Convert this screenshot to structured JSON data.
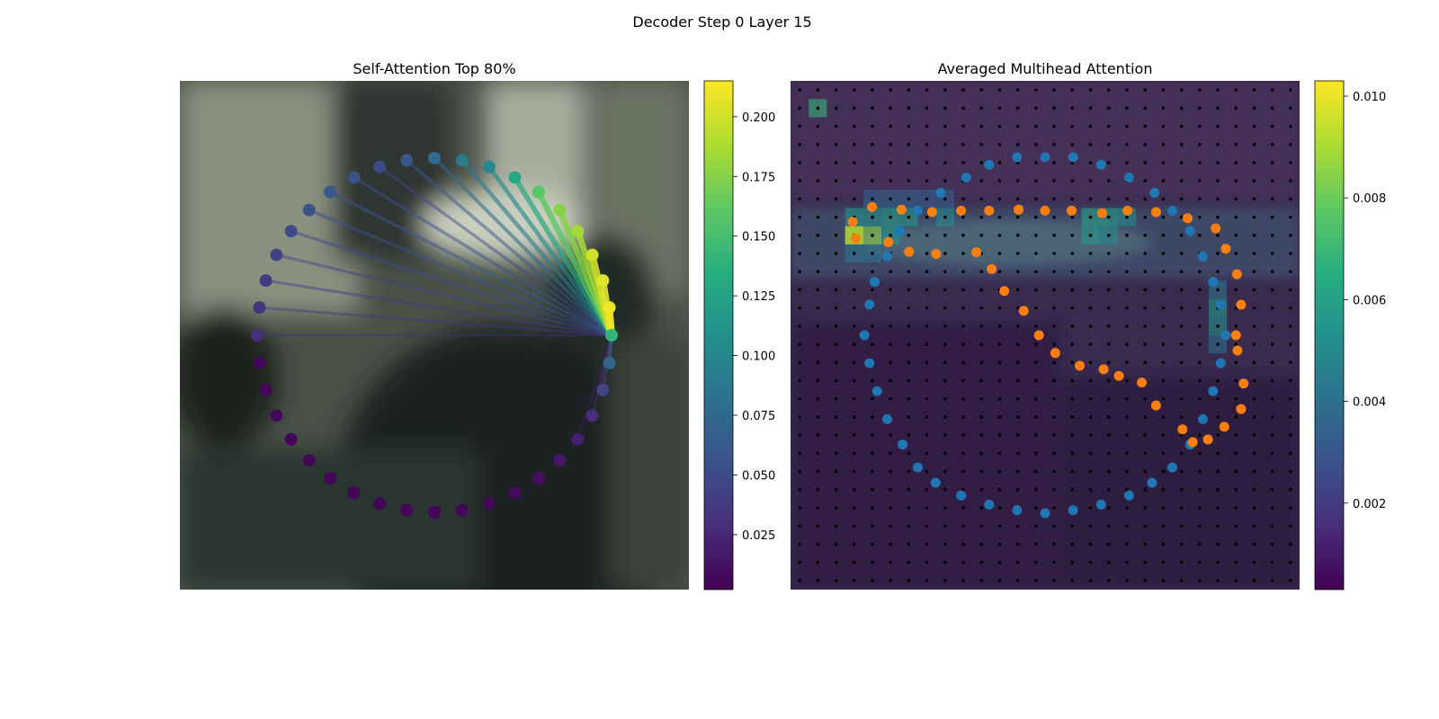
{
  "figure_title": "Decoder Step 0 Layer 15",
  "colormap": [
    "#440154",
    "#472d7b",
    "#3b528b",
    "#2c728e",
    "#21918c",
    "#28ae80",
    "#5ec962",
    "#addc30",
    "#fde725"
  ],
  "series_colors": {
    "contour": "#1f77b4",
    "predicted": "#ff7f0e",
    "grid": "#000000"
  },
  "chart_data": [
    {
      "type": "scatter",
      "title": "Self-Attention Top 80%",
      "description_of_background": "blurred photograph",
      "num_contour_points": 40,
      "query_point_index": 0,
      "attention_weights": [
        0.14,
        0.07,
        0.045,
        0.03,
        0.02,
        0.015,
        0.01,
        0.008,
        0.006,
        0.005,
        0.004,
        0.004,
        0.004,
        0.004,
        0.005,
        0.005,
        0.005,
        0.006,
        0.006,
        0.006,
        0.03,
        0.035,
        0.04,
        0.045,
        0.05,
        0.055,
        0.06,
        0.055,
        0.05,
        0.06,
        0.075,
        0.09,
        0.1,
        0.13,
        0.16,
        0.175,
        0.185,
        0.2,
        0.205,
        0.21
      ],
      "colorbar": {
        "min": 0.002,
        "max": 0.215,
        "ticks": [
          "0.025",
          "0.050",
          "0.075",
          "0.100",
          "0.125",
          "0.150",
          "0.175",
          "0.200"
        ]
      }
    },
    {
      "type": "scatter",
      "title": "Averaged Multihead Attention",
      "grid_size": 28,
      "colorbar": {
        "min": 0.0003,
        "max": 0.0103,
        "ticks": [
          "0.002",
          "0.004",
          "0.006",
          "0.008",
          "0.010"
        ]
      },
      "heat_cells": [
        {
          "r": 1,
          "c": 1,
          "v": 0.0068
        },
        {
          "r": 8,
          "c": 3,
          "v": 0.0092
        },
        {
          "r": 8,
          "c": 4,
          "v": 0.0085
        },
        {
          "r": 8,
          "c": 3,
          "v": 0.0092
        },
        {
          "r": 7,
          "c": 3,
          "v": 0.0055
        },
        {
          "r": 7,
          "c": 4,
          "v": 0.0052
        },
        {
          "r": 7,
          "c": 5,
          "v": 0.0058
        },
        {
          "r": 7,
          "c": 6,
          "v": 0.0056
        },
        {
          "r": 7,
          "c": 8,
          "v": 0.005
        },
        {
          "r": 7,
          "c": 16,
          "v": 0.006
        },
        {
          "r": 7,
          "c": 17,
          "v": 0.0058
        },
        {
          "r": 7,
          "c": 18,
          "v": 0.0052
        },
        {
          "r": 8,
          "c": 5,
          "v": 0.0055
        },
        {
          "r": 8,
          "c": 16,
          "v": 0.0056
        },
        {
          "r": 8,
          "c": 17,
          "v": 0.005
        },
        {
          "r": 9,
          "c": 3,
          "v": 0.0042
        },
        {
          "r": 9,
          "c": 4,
          "v": 0.004
        },
        {
          "r": 12,
          "c": 23,
          "v": 0.0058
        },
        {
          "r": 13,
          "c": 23,
          "v": 0.0055
        },
        {
          "r": 11,
          "c": 23,
          "v": 0.0042
        },
        {
          "r": 14,
          "c": 23,
          "v": 0.004
        },
        {
          "r": 6,
          "c": 4,
          "v": 0.0035
        },
        {
          "r": 6,
          "c": 5,
          "v": 0.0036
        },
        {
          "r": 6,
          "c": 6,
          "v": 0.0034
        },
        {
          "r": 6,
          "c": 7,
          "v": 0.0033
        },
        {
          "r": 6,
          "c": 8,
          "v": 0.0033
        }
      ],
      "contour_points_xy": [
        [
          0.5,
          0.15
        ],
        [
          0.555,
          0.15
        ],
        [
          0.61,
          0.165
        ],
        [
          0.665,
          0.19
        ],
        [
          0.715,
          0.22
        ],
        [
          0.75,
          0.255
        ],
        [
          0.785,
          0.295
        ],
        [
          0.81,
          0.345
        ],
        [
          0.83,
          0.395
        ],
        [
          0.845,
          0.44
        ],
        [
          0.855,
          0.5
        ],
        [
          0.845,
          0.555
        ],
        [
          0.83,
          0.61
        ],
        [
          0.81,
          0.665
        ],
        [
          0.785,
          0.715
        ],
        [
          0.75,
          0.76
        ],
        [
          0.71,
          0.79
        ],
        [
          0.665,
          0.815
        ],
        [
          0.61,
          0.833
        ],
        [
          0.555,
          0.844
        ],
        [
          0.5,
          0.85
        ],
        [
          0.445,
          0.844
        ],
        [
          0.39,
          0.833
        ],
        [
          0.335,
          0.815
        ],
        [
          0.285,
          0.79
        ],
        [
          0.25,
          0.76
        ],
        [
          0.22,
          0.715
        ],
        [
          0.19,
          0.665
        ],
        [
          0.17,
          0.61
        ],
        [
          0.155,
          0.555
        ],
        [
          0.145,
          0.5
        ],
        [
          0.155,
          0.44
        ],
        [
          0.165,
          0.395
        ],
        [
          0.19,
          0.345
        ],
        [
          0.215,
          0.295
        ],
        [
          0.25,
          0.255
        ],
        [
          0.295,
          0.22
        ],
        [
          0.345,
          0.19
        ],
        [
          0.39,
          0.165
        ],
        [
          0.445,
          0.15
        ]
      ],
      "predicted_points_xy": [
        [
          0.122,
          0.277
        ],
        [
          0.16,
          0.248
        ],
        [
          0.218,
          0.253
        ],
        [
          0.278,
          0.258
        ],
        [
          0.335,
          0.255
        ],
        [
          0.39,
          0.255
        ],
        [
          0.448,
          0.253
        ],
        [
          0.5,
          0.255
        ],
        [
          0.552,
          0.255
        ],
        [
          0.612,
          0.26
        ],
        [
          0.662,
          0.255
        ],
        [
          0.718,
          0.258
        ],
        [
          0.78,
          0.27
        ],
        [
          0.835,
          0.29
        ],
        [
          0.855,
          0.33
        ],
        [
          0.877,
          0.38
        ],
        [
          0.885,
          0.44
        ],
        [
          0.875,
          0.5
        ],
        [
          0.878,
          0.53
        ],
        [
          0.89,
          0.595
        ],
        [
          0.885,
          0.645
        ],
        [
          0.852,
          0.68
        ],
        [
          0.82,
          0.705
        ],
        [
          0.79,
          0.71
        ],
        [
          0.77,
          0.685
        ],
        [
          0.718,
          0.638
        ],
        [
          0.69,
          0.593
        ],
        [
          0.645,
          0.58
        ],
        [
          0.615,
          0.567
        ],
        [
          0.568,
          0.56
        ],
        [
          0.52,
          0.535
        ],
        [
          0.488,
          0.5
        ],
        [
          0.458,
          0.452
        ],
        [
          0.42,
          0.413
        ],
        [
          0.395,
          0.37
        ],
        [
          0.365,
          0.337
        ],
        [
          0.286,
          0.34
        ],
        [
          0.233,
          0.336
        ],
        [
          0.192,
          0.317
        ],
        [
          0.128,
          0.31
        ]
      ]
    }
  ]
}
